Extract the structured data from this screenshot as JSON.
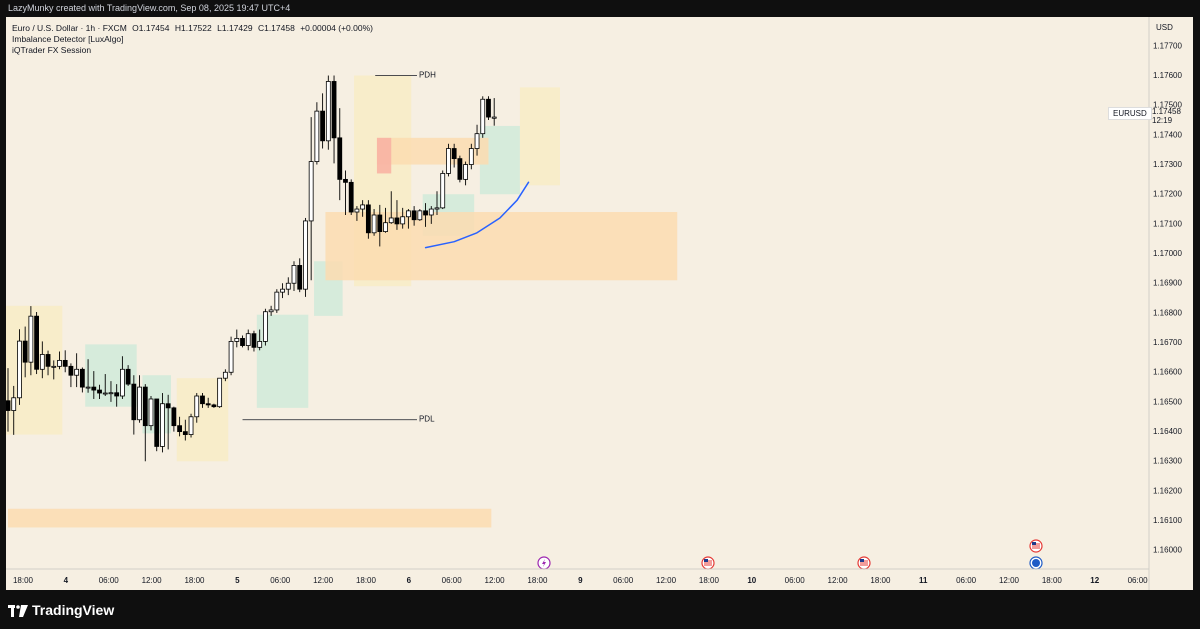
{
  "header": {
    "creator_line": "LazyMunky created with TradingView.com, Sep 08, 2025 19:47 UTC+4"
  },
  "legend": {
    "symbol_line": "Euro / U.S. Dollar · 1h · FXCM",
    "open": "O1.17454",
    "high": "H1.17522",
    "low": "L1.17429",
    "close": "C1.17458",
    "change": "+0.00004 (+0.00%)",
    "indicator_1": "Imbalance Detector [LuxAlgo]",
    "indicator_2": "iQTrader FX Session"
  },
  "price_scale": {
    "currency": "USD",
    "labels": [
      "1.17700",
      "1.17600",
      "1.17500",
      "1.17400",
      "1.17300",
      "1.17200",
      "1.17100",
      "1.17000",
      "1.16900",
      "1.16800",
      "1.16700",
      "1.16600",
      "1.16500",
      "1.16400",
      "1.16300",
      "1.16200",
      "1.16100",
      "1.16000"
    ],
    "current_symbol": "EURUSD",
    "current_price": "1.17458",
    "countdown": "12:19"
  },
  "time_axis": {
    "labels": [
      "18:00",
      "4",
      "06:00",
      "12:00",
      "18:00",
      "5",
      "06:00",
      "12:00",
      "18:00",
      "6",
      "06:00",
      "12:00",
      "18:00",
      "9",
      "06:00",
      "12:00",
      "18:00",
      "10",
      "06:00",
      "12:00",
      "18:00",
      "11",
      "06:00",
      "12:00",
      "18:00",
      "12",
      "06:00"
    ],
    "day_labels": [
      "4",
      "5",
      "6",
      "9",
      "10",
      "11",
      "12"
    ]
  },
  "annotations": {
    "pdh": "PDH",
    "pdl": "PDL"
  },
  "events": [
    {
      "icon": "lightning-event-icon",
      "color": "#9c27b0"
    },
    {
      "icon": "us-flag-icon",
      "color": "#e53935"
    },
    {
      "icon": "us-flag-icon",
      "color": "#e53935"
    },
    {
      "icon": "us-flag-icon",
      "color": "#e53935"
    },
    {
      "icon": "globe-icon",
      "color": "#1e5bc6"
    }
  ],
  "colors": {
    "background": "#f6efe2",
    "session_tokyo": "#d3eada",
    "session_london": "#f8ecc8",
    "imbalance_orange": "#fbdcb0",
    "imbalance_red": "#f8b3a3",
    "curve": "#2962ff",
    "candle_up": "#ffffff",
    "candle_down": "#000000"
  },
  "footer": {
    "brand": "TradingView"
  },
  "chart_data": {
    "type": "candlestick",
    "symbol": "EURUSD",
    "timeframe": "1h",
    "ylim": [
      1.15935,
      1.17775
    ],
    "candles_ohlc": [
      [
        1.16502,
        1.16612,
        1.16398,
        1.16469
      ],
      [
        1.16469,
        1.16552,
        1.16387,
        1.16512
      ],
      [
        1.16512,
        1.16743,
        1.16488,
        1.16703
      ],
      [
        1.16703,
        1.16752,
        1.16581,
        1.16632
      ],
      [
        1.16632,
        1.16821,
        1.16588,
        1.16787
      ],
      [
        1.16787,
        1.16801,
        1.16592,
        1.16608
      ],
      [
        1.16608,
        1.16702,
        1.16578,
        1.16658
      ],
      [
        1.16658,
        1.16671,
        1.16588,
        1.16618
      ],
      [
        1.16618,
        1.16638,
        1.16574,
        1.16618
      ],
      [
        1.16618,
        1.16668,
        1.16608,
        1.16638
      ],
      [
        1.16638,
        1.16672,
        1.16598,
        1.16618
      ],
      [
        1.16618,
        1.16628,
        1.16548,
        1.16588
      ],
      [
        1.16588,
        1.16662,
        1.16548,
        1.16608
      ],
      [
        1.16608,
        1.16614,
        1.1653,
        1.16548
      ],
      [
        1.16548,
        1.16642,
        1.16529,
        1.16548
      ],
      [
        1.16548,
        1.16602,
        1.16508,
        1.16538
      ],
      [
        1.16538,
        1.16556,
        1.16508,
        1.16528
      ],
      [
        1.16528,
        1.16592,
        1.16518,
        1.16528
      ],
      [
        1.16528,
        1.16568,
        1.16498,
        1.16529
      ],
      [
        1.16529,
        1.16558,
        1.16482,
        1.16518
      ],
      [
        1.16518,
        1.16652,
        1.16508,
        1.16608
      ],
      [
        1.16608,
        1.16622,
        1.16552,
        1.16558
      ],
      [
        1.16558,
        1.16588,
        1.16388,
        1.16438
      ],
      [
        1.16438,
        1.16588,
        1.16428,
        1.16548
      ],
      [
        1.16548,
        1.16558,
        1.16298,
        1.16418
      ],
      [
        1.16418,
        1.16518,
        1.16402,
        1.16508
      ],
      [
        1.16508,
        1.16508,
        1.16332,
        1.16348
      ],
      [
        1.16348,
        1.16528,
        1.16328,
        1.16492
      ],
      [
        1.16492,
        1.16522,
        1.16338,
        1.16478
      ],
      [
        1.16478,
        1.16482,
        1.16398,
        1.16418
      ],
      [
        1.16418,
        1.16448,
        1.16382,
        1.16398
      ],
      [
        1.16398,
        1.16438,
        1.16368,
        1.16388
      ],
      [
        1.16388,
        1.16458,
        1.16378,
        1.16448
      ],
      [
        1.16448,
        1.16528,
        1.16428,
        1.16518
      ],
      [
        1.16518,
        1.16528,
        1.16478,
        1.16492
      ],
      [
        1.16492,
        1.16512,
        1.16478,
        1.16488
      ],
      [
        1.16488,
        1.16492,
        1.16478,
        1.16482
      ],
      [
        1.16482,
        1.16578,
        1.16478,
        1.16578
      ],
      [
        1.16578,
        1.16608,
        1.16568,
        1.16598
      ],
      [
        1.16598,
        1.16718,
        1.16588,
        1.16702
      ],
      [
        1.16702,
        1.16742,
        1.16682,
        1.16712
      ],
      [
        1.16712,
        1.16722,
        1.16682,
        1.16688
      ],
      [
        1.16688,
        1.16742,
        1.16672,
        1.16728
      ],
      [
        1.16728,
        1.16738,
        1.16668,
        1.16682
      ],
      [
        1.16682,
        1.16742,
        1.16672,
        1.16702
      ],
      [
        1.16702,
        1.16812,
        1.16688,
        1.16802
      ],
      [
        1.16802,
        1.16822,
        1.16788,
        1.16808
      ],
      [
        1.16808,
        1.16878,
        1.16798,
        1.16868
      ],
      [
        1.16868,
        1.16898,
        1.16848,
        1.16878
      ],
      [
        1.16878,
        1.16918,
        1.16858,
        1.16898
      ],
      [
        1.16898,
        1.16972,
        1.16872,
        1.16958
      ],
      [
        1.16958,
        1.16982,
        1.16868,
        1.16878
      ],
      [
        1.16878,
        1.17118,
        1.16852,
        1.17108
      ],
      [
        1.17108,
        1.17458,
        1.16908,
        1.17308
      ],
      [
        1.17308,
        1.17508,
        1.17298,
        1.17478
      ],
      [
        1.17478,
        1.17538,
        1.17352,
        1.17378
      ],
      [
        1.17378,
        1.17598,
        1.17348,
        1.17578
      ],
      [
        1.17578,
        1.17598,
        1.17302,
        1.17388
      ],
      [
        1.17388,
        1.17488,
        1.17178,
        1.17248
      ],
      [
        1.17248,
        1.17278,
        1.17128,
        1.17238
      ],
      [
        1.17238,
        1.17248,
        1.17128,
        1.17138
      ],
      [
        1.17138,
        1.17158,
        1.17108,
        1.17148
      ],
      [
        1.17148,
        1.17178,
        1.17122,
        1.17162
      ],
      [
        1.17162,
        1.17178,
        1.17048,
        1.17068
      ],
      [
        1.17068,
        1.17148,
        1.17058,
        1.17128
      ],
      [
        1.17128,
        1.17162,
        1.17022,
        1.17072
      ],
      [
        1.17072,
        1.17152,
        1.17068,
        1.17102
      ],
      [
        1.17102,
        1.17208,
        1.17098,
        1.17118
      ],
      [
        1.17118,
        1.17178,
        1.17078,
        1.17098
      ],
      [
        1.17098,
        1.17152,
        1.17082,
        1.17122
      ],
      [
        1.17122,
        1.17148,
        1.17082,
        1.17142
      ],
      [
        1.17142,
        1.17158,
        1.17092,
        1.17112
      ],
      [
        1.17112,
        1.17148,
        1.17108,
        1.17142
      ],
      [
        1.17142,
        1.17168,
        1.17088,
        1.17128
      ],
      [
        1.17128,
        1.17158,
        1.17098,
        1.17148
      ],
      [
        1.17148,
        1.17208,
        1.17128,
        1.17152
      ],
      [
        1.17152,
        1.17278,
        1.17148,
        1.17268
      ],
      [
        1.17268,
        1.17368,
        1.17258,
        1.17352
      ],
      [
        1.17352,
        1.17368,
        1.17288,
        1.17318
      ],
      [
        1.17318,
        1.17328,
        1.17238,
        1.17248
      ],
      [
        1.17248,
        1.17308,
        1.17228,
        1.17298
      ],
      [
        1.17298,
        1.17368,
        1.17282,
        1.17352
      ],
      [
        1.17352,
        1.17432,
        1.17328,
        1.17402
      ],
      [
        1.17402,
        1.17528,
        1.17388,
        1.17518
      ],
      [
        1.17518,
        1.17528,
        1.17448,
        1.17458
      ],
      [
        1.17454,
        1.17522,
        1.17429,
        1.17458
      ]
    ],
    "levels": {
      "PDH": 1.17598,
      "PDL": 1.16438
    },
    "imbalance_zones": [
      {
        "from": 1.17138,
        "to": 1.16908,
        "color": "orange"
      },
      {
        "from": 1.17388,
        "to": 1.17298,
        "color": "orange"
      },
      {
        "from": 1.17388,
        "to": 1.17268,
        "color": "red"
      },
      {
        "from": 1.16138,
        "to": 1.16075,
        "color": "orange"
      }
    ]
  }
}
